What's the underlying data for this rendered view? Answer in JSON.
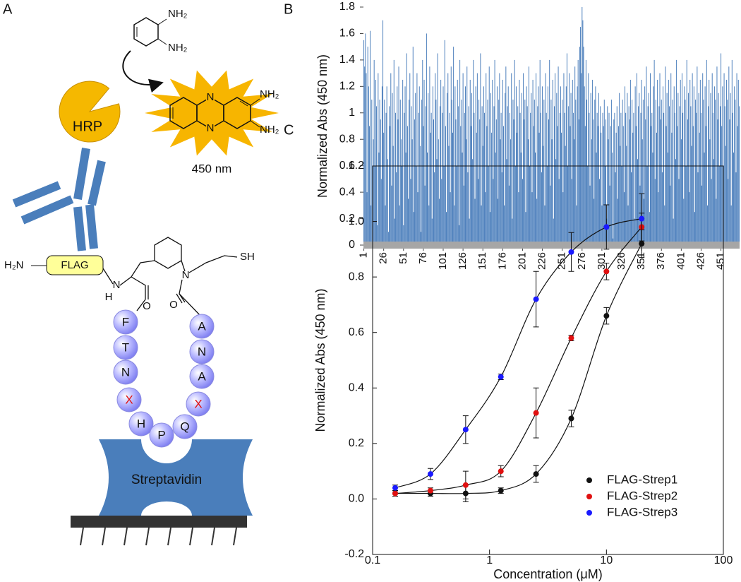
{
  "diagram": {
    "panel_label": "A",
    "reagent_amines": [
      "NH₂",
      "NH₂"
    ],
    "enzyme": "HRP",
    "product_atoms": [
      "N",
      "N"
    ],
    "product_amines": [
      "NH₂",
      "NH₂"
    ],
    "wavelength": "450 nm",
    "n_terminus": "H₂N",
    "tag": "FLAG",
    "linker_atoms": [
      "N",
      "H",
      "O",
      "N",
      "O",
      "SH"
    ],
    "peptide": [
      "F",
      "T",
      "N",
      "X",
      "H",
      "P",
      "Q",
      "X",
      "A",
      "N",
      "A"
    ],
    "target": "Streptavidin"
  },
  "chart_data": [
    {
      "type": "bar",
      "panel_label": "B",
      "y_label": "Normalized Abs (450 nm)",
      "color": "#4f81bd",
      "x": [
        1,
        2,
        3,
        4,
        5,
        6,
        7,
        8,
        9,
        10,
        11,
        12,
        13,
        14,
        15,
        16,
        17,
        18,
        19,
        20,
        21,
        22,
        23,
        24,
        25,
        26,
        27,
        28,
        29,
        30,
        31,
        32,
        33,
        34,
        35,
        36,
        37,
        38,
        39,
        40,
        41,
        42,
        43,
        44,
        45,
        46,
        47,
        48,
        49,
        50,
        51,
        52,
        53,
        54,
        55,
        56,
        57,
        58,
        59,
        60,
        61,
        62,
        63,
        64,
        65,
        66,
        67,
        68,
        69,
        70,
        71,
        72,
        73,
        74,
        75,
        76,
        77,
        78,
        79,
        80,
        81,
        82,
        83,
        84,
        85,
        86,
        87,
        88,
        89,
        90,
        91,
        92,
        93,
        94,
        95,
        96,
        97,
        98,
        99,
        100,
        101,
        102,
        103,
        104,
        105,
        106,
        107,
        108,
        109,
        110,
        111,
        112,
        113,
        114,
        115,
        116,
        117,
        118,
        119,
        120,
        121,
        122,
        123,
        124,
        125,
        126,
        127,
        128,
        129,
        130,
        131,
        132,
        133,
        134,
        135,
        136,
        137,
        138,
        139,
        140,
        141,
        142,
        143,
        144,
        145,
        146,
        147,
        148,
        149,
        150,
        151,
        152,
        153,
        154,
        155,
        156,
        157,
        158,
        159,
        160,
        161,
        162,
        163,
        164,
        165,
        166,
        167,
        168,
        169,
        170,
        171,
        172,
        173,
        174,
        175,
        176,
        177,
        178,
        179,
        180,
        181,
        182,
        183,
        184,
        185,
        186,
        187,
        188,
        189,
        190,
        191,
        192,
        193,
        194,
        195,
        196,
        197,
        198,
        199,
        200,
        201,
        202,
        203,
        204,
        205,
        206,
        207,
        208,
        209,
        210,
        211,
        212,
        213,
        214,
        215,
        216,
        217,
        218,
        219,
        220,
        221,
        222,
        223,
        224,
        225,
        226,
        227,
        228,
        229,
        230,
        231,
        232,
        233,
        234,
        235,
        236,
        237,
        238,
        239,
        240,
        241,
        242,
        243,
        244,
        245,
        246,
        247,
        248,
        249,
        250,
        251,
        252,
        253,
        254,
        255,
        256,
        257,
        258,
        259,
        260,
        261,
        262,
        263,
        264,
        265,
        266,
        267,
        268,
        269,
        270,
        271,
        272,
        273,
        274,
        275,
        276,
        277,
        278,
        279,
        280,
        281,
        282,
        283,
        284,
        285,
        286,
        287,
        288,
        289,
        290,
        291,
        292,
        293,
        294,
        295,
        296,
        297,
        298,
        299,
        300,
        301,
        302,
        303,
        304,
        305,
        306,
        307,
        308,
        309,
        310,
        311,
        312,
        313,
        314,
        315,
        316,
        317,
        318,
        319,
        320,
        321,
        322,
        323,
        324,
        325,
        326,
        327,
        328,
        329,
        330,
        331,
        332,
        333,
        334,
        335,
        336,
        337,
        338,
        339,
        340,
        341,
        342,
        343,
        344,
        345,
        346,
        347,
        348,
        349,
        350,
        351,
        352,
        353,
        354,
        355,
        356,
        357,
        358,
        359,
        360,
        361,
        362,
        363,
        364,
        365,
        366,
        367,
        368,
        369,
        370,
        371,
        372,
        373,
        374,
        375,
        376,
        377,
        378,
        379,
        380,
        381,
        382,
        383,
        384,
        385,
        386,
        387,
        388,
        389,
        390,
        391,
        392,
        393,
        394,
        395,
        396,
        397,
        398,
        399,
        400,
        401,
        402,
        403,
        404,
        405,
        406,
        407,
        408,
        409,
        410,
        411,
        412,
        413,
        414,
        415,
        416,
        417,
        418,
        419,
        420,
        421,
        422,
        423,
        424,
        425,
        426,
        427,
        428,
        429,
        430,
        431,
        432,
        433,
        434,
        435,
        436,
        437,
        438,
        439,
        440,
        441,
        442,
        443,
        444,
        445,
        446,
        447,
        448,
        449,
        450,
        451,
        452,
        453,
        454,
        455,
        456,
        457,
        458,
        459,
        460,
        461,
        462,
        463,
        464,
        465,
        466,
        467,
        468,
        469,
        470,
        471,
        472,
        473,
        474
      ],
      "values": [
        1.55,
        1.35,
        1.6,
        1.3,
        0.4,
        1.5,
        1.2,
        0.9,
        1.62,
        0.3,
        1.1,
        0.2,
        0.8,
        1.4,
        0.6,
        1.25,
        1.05,
        0.15,
        1.3,
        0.7,
        1.1,
        0.95,
        0.5,
        1.2,
        1.7,
        0.85,
        1.1,
        0.3,
        1.0,
        1.2,
        0.65,
        0.1,
        1.05,
        0.9,
        1.3,
        0.45,
        1.15,
        0.75,
        1.4,
        0.2,
        1.0,
        0.55,
        1.2,
        0.95,
        1.35,
        0.3,
        1.1,
        0.8,
        0.6,
        1.25,
        0.15,
        1.0,
        1.2,
        0.7,
        1.45,
        0.9,
        0.35,
        1.1,
        1.3,
        0.5,
        1.05,
        0.8,
        1.5,
        0.25,
        0.95,
        1.15,
        0.6,
        1.3,
        0.4,
        1.0,
        1.2,
        0.75,
        0.1,
        1.1,
        1.4,
        0.9,
        1.25,
        0.45,
        1.05,
        1.6,
        0.7,
        1.15,
        0.3,
        1.35,
        0.85,
        1.0,
        0.2,
        1.2,
        0.95,
        0.55,
        1.3,
        1.1,
        0.65,
        1.45,
        0.8,
        0.35,
        1.05,
        1.25,
        0.5,
        1.0,
        1.2,
        0.6,
        1.55,
        0.9,
        0.25,
        1.15,
        1.3,
        0.75,
        1.0,
        0.4,
        1.35,
        1.1,
        0.85,
        1.5,
        0.3,
        1.2,
        0.95,
        0.6,
        1.25,
        1.05,
        0.15,
        1.4,
        0.9,
        1.1,
        0.7,
        1.3,
        0.45,
        1.0,
        1.2,
        0.8,
        1.35,
        0.55,
        1.05,
        0.2,
        1.25,
        0.9,
        1.15,
        0.65,
        1.4,
        1.0,
        0.35,
        1.2,
        0.85,
        1.3,
        0.5,
        1.1,
        0.95,
        1.45,
        0.3,
        1.05,
        0.75,
        1.2,
        1.0,
        0.4,
        1.3,
        0.9,
        1.1,
        0.6,
        1.35,
        0.25,
        1.15,
        0.85,
        1.25,
        0.5,
        1.05,
        1.4,
        0.7,
        0.95,
        1.2,
        0.35,
        1.1,
        1.3,
        0.8,
        1.0,
        0.55,
        1.25,
        0.9,
        0.3,
        1.15,
        1.35,
        0.65,
        1.05,
        1.2,
        0.45,
        1.0,
        0.8,
        1.3,
        0.2,
        1.1,
        0.95,
        1.4,
        0.6,
        1.2,
        0.85,
        1.05,
        0.4,
        1.25,
        1.0,
        0.7,
        1.15,
        0.5,
        1.3,
        0.95,
        1.1,
        0.25,
        1.2,
        1.05,
        0.8,
        1.35,
        0.6,
        1.0,
        1.15,
        0.4,
        1.25,
        0.9,
        1.1,
        0.7,
        1.3,
        0.35,
        1.05,
        1.2,
        0.85,
        1.4,
        1.0,
        0.55,
        1.2,
        0.75,
        1.1,
        0.3,
        1.3,
        1.0,
        0.6,
        1.2,
        0.95,
        1.4,
        0.45,
        1.1,
        0.8,
        1.25,
        0.2,
        1.05,
        1.3,
        0.65,
        1.15,
        0.9,
        1.35,
        0.5,
        1.0,
        1.2,
        0.85,
        1.1,
        0.4,
        1.3,
        1.0,
        0.75,
        1.2,
        1.45,
        0.6,
        1.05,
        1.3,
        0.9,
        1.15,
        0.5,
        1.25,
        1.0,
        0.8,
        1.35,
        1.1,
        0.3,
        1.2,
        1.4,
        0.95,
        1.5,
        1.65,
        1.3,
        1.8,
        1.7,
        1.5,
        1.2,
        0.9,
        1.4,
        1.1,
        0.6,
        1.3,
        1.0,
        0.45,
        1.15,
        0.8,
        1.25,
        0.95,
        0.35,
        1.1,
        1.2,
        0.7,
        1.0,
        0.9,
        1.15,
        0.5,
        1.05,
        0.85,
        0.3,
        1.0,
        0.9,
        1.1,
        0.6,
        0.95,
        0.2,
        1.05,
        0.8,
        1.0,
        0.45,
        0.9,
        1.1,
        0.7,
        0.05,
        0.95,
        1.0,
        0.55,
        0.85,
        1.05,
        0.35,
        0.9,
        1.15,
        0.75,
        1.0,
        0.6,
        1.1,
        0.9,
        0.4,
        1.2,
        1.0,
        0.75,
        1.15,
        0.3,
        1.05,
        0.95,
        1.25,
        0.55,
        1.1,
        0.85,
        1.0,
        0.2,
        1.2,
        0.9,
        1.3,
        0.65,
        1.05,
        1.15,
        0.45,
        1.0,
        1.25,
        0.8,
        1.1,
        0.35,
        1.2,
        0.95,
        1.35,
        0.6,
        1.05,
        1.15,
        0.25,
        1.3,
        0.9,
        1.0,
        0.7,
        1.2,
        1.4,
        0.5,
        1.1,
        0.85,
        1.25,
        0.4,
        1.05,
        1.3,
        0.95,
        1.1,
        0.55,
        1.2,
        1.0,
        0.3,
        1.35,
        0.9,
        1.15,
        0.7,
        1.25,
        1.05,
        0.45,
        1.3,
        0.85,
        1.1,
        0.2,
        1.2,
        1.0,
        0.65,
        1.4,
        0.9,
        1.15,
        0.5,
        1.05,
        1.25,
        0.8,
        1.3,
        1.0,
        0.35,
        1.2,
        1.1,
        0.6,
        1.4,
        0.95,
        1.15,
        0.4,
        1.25,
        1.05,
        0.75,
        1.3,
        0.9,
        1.2,
        0.25,
        1.1,
        1.0,
        1.35,
        0.55,
        1.15,
        0.85,
        1.25,
        1.0,
        0.45,
        1.3,
        1.1,
        0.7,
        1.2,
        0.9,
        1.4,
        0.3,
        1.05,
        1.25,
        0.8,
        1.15,
        0.5,
        1.3,
        1.0,
        0.65,
        1.2,
        1.1,
        0.35,
        1.35,
        0.95,
        1.15,
        0.6,
        1.05,
        1.45,
        0.9,
        1.2,
        0.4,
        1.3,
        1.05,
        0.75,
        1.25,
        1.1,
        0.5,
        1.35,
        0.95,
        1.15,
        0.3,
        1.4,
        1.0,
        0.7,
        1.2,
        1.1,
        0.55,
        1.3,
        0.9,
        1.25,
        1.05
      ],
      "xlim": [
        0.5,
        474.5
      ],
      "xticks": [
        1,
        26,
        51,
        76,
        101,
        126,
        151,
        176,
        201,
        226,
        251,
        276,
        301,
        326,
        351,
        376,
        401,
        426,
        451
      ],
      "ylim": [
        0,
        1.8
      ],
      "yticks": [
        0,
        0.2,
        0.4,
        0.6,
        0.8,
        1,
        1.2,
        1.4,
        1.6,
        1.8
      ]
    },
    {
      "type": "scatter",
      "panel_label": "C",
      "x_label": "Concentration (μM)",
      "y_label": "Normalized Abs (450 nm)",
      "xscale": "log",
      "xlim": [
        0.1,
        100
      ],
      "xticks": [
        0.1,
        1,
        10,
        100
      ],
      "ylim": [
        -0.2,
        1.2
      ],
      "yticks": [
        -0.2,
        {
          "value": 0,
          "label": "0.0"
        },
        0.2,
        0.4,
        0.6,
        0.8,
        {
          "value": 1,
          "label": "1.0"
        },
        1.2
      ],
      "legend": "lower right",
      "fit_curves": true,
      "series": [
        {
          "name": "FLAG-Strep1",
          "color": "#111111",
          "x": [
            0.156,
            0.3125,
            0.625,
            1.25,
            2.5,
            5,
            10,
            20
          ],
          "values": [
            0.02,
            0.02,
            0.02,
            0.03,
            0.09,
            0.29,
            0.66,
            0.92
          ],
          "errors": [
            0.01,
            0.01,
            0.03,
            0.01,
            0.03,
            0.03,
            0.03,
            0.05
          ]
        },
        {
          "name": "FLAG-Strep2",
          "color": "#e01010",
          "x": [
            0.156,
            0.3125,
            0.625,
            1.25,
            2.5,
            5,
            10,
            20
          ],
          "values": [
            0.02,
            0.03,
            0.05,
            0.1,
            0.31,
            0.58,
            0.82,
            0.98
          ],
          "errors": [
            0.01,
            0.01,
            0.05,
            0.02,
            0.09,
            0.01,
            0.03,
            0.05
          ]
        },
        {
          "name": "FLAG-Strep3",
          "color": "#1a1aff",
          "x": [
            0.156,
            0.3125,
            0.625,
            1.25,
            2.5,
            5,
            10,
            20
          ],
          "values": [
            0.04,
            0.09,
            0.25,
            0.44,
            0.72,
            0.89,
            0.98,
            1.01
          ],
          "errors": [
            0.01,
            0.02,
            0.05,
            0.01,
            0.1,
            0.07,
            0.08,
            0.09
          ]
        }
      ]
    }
  ]
}
